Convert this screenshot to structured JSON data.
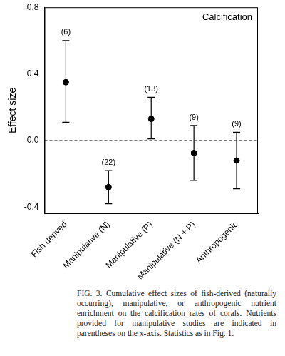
{
  "chart_data": {
    "type": "scatter",
    "annotation": "Calcification",
    "y_label": "Effect size",
    "categories": [
      "Fish derived",
      "Manipulative (N)",
      "Manipulative (P)",
      "Manipulative (N + P)",
      "Anthropogenic"
    ],
    "values": [
      0.35,
      -0.28,
      0.13,
      -0.075,
      -0.12
    ],
    "ci_lower": [
      0.11,
      -0.38,
      0.01,
      -0.24,
      -0.29
    ],
    "ci_upper": [
      0.6,
      -0.18,
      0.26,
      0.09,
      0.05
    ],
    "sample_size_labels": [
      "(6)",
      "(22)",
      "(13)",
      "(9)",
      "(9)"
    ],
    "color": "#000000",
    "marker": "circle",
    "ylim": [
      -0.44,
      0.8
    ],
    "yticks": [
      -0.4,
      {
        "value": 0,
        "label": "0.0"
      },
      0.4,
      0.8
    ],
    "reference_line": 0,
    "grid": false,
    "caption": "FIG. 3. Cumulative effect sizes of fish-derived (naturally occurring), manipulative, or anthropogenic nutrient enrichment on the calcification rates of corals. Nutrients provided for manipulative studies are indicated in parentheses on the x-axis. Statistics as in Fig. 1."
  }
}
